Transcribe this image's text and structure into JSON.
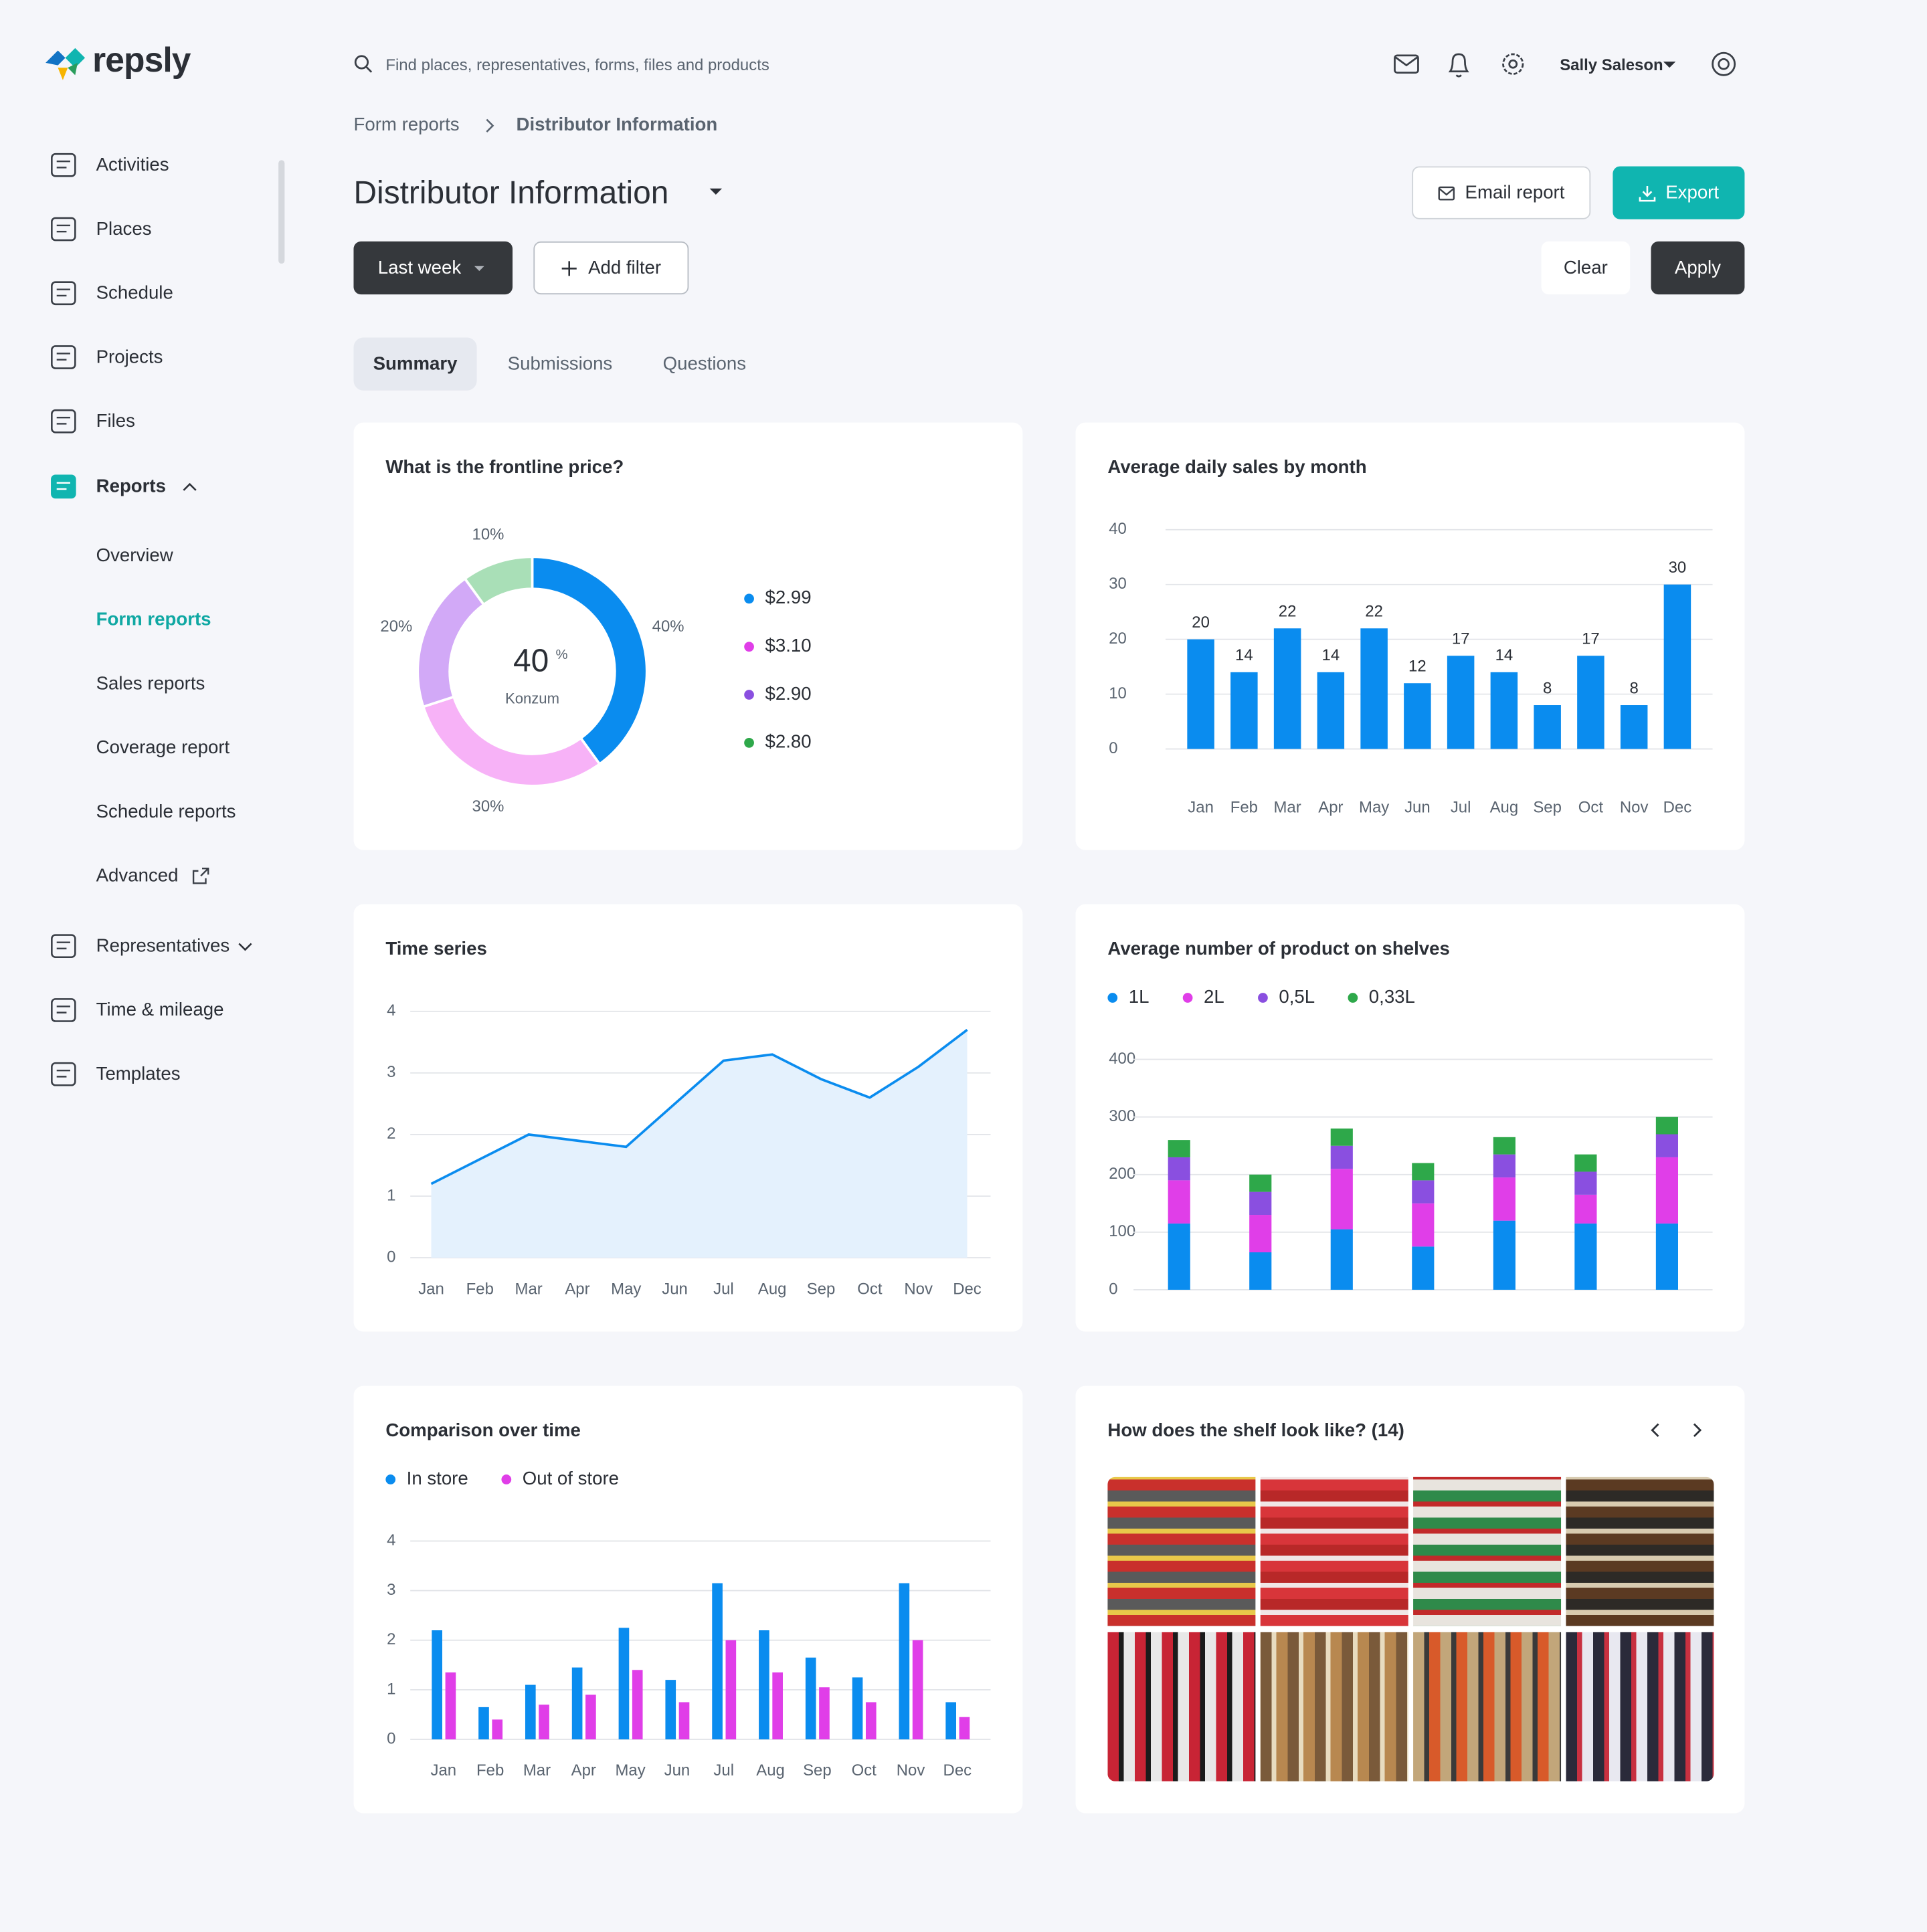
{
  "header": {
    "logo": "repsly",
    "search_placeholder": "Find places, representatives, forms, files and products",
    "user": "Sally Saleson"
  },
  "nav": [
    "Activities",
    "Places",
    "Schedule",
    "Projects",
    "Files",
    "Reports"
  ],
  "report_links": [
    "Overview",
    "Form reports",
    "Sales reports",
    "Coverage report",
    "Schedule reports",
    "Advanced"
  ],
  "active_report_link": 1,
  "nav_after": [
    "Representatives",
    "Time & mileage",
    "Templates"
  ],
  "breadcrumb": [
    "Form reports",
    "Distributor Information"
  ],
  "page_title": "Distributor Information",
  "buttons": {
    "email": "Email report",
    "export": "Export",
    "period": "Last week",
    "add_filter": "Add filter",
    "clear": "Clear",
    "apply": "Apply"
  },
  "tabs": [
    "Summary",
    "Submissions",
    "Questions"
  ],
  "active_tab": 0,
  "gallery": {
    "title": "How does the shelf look like? (14)"
  },
  "chart_data": [
    {
      "type": "pie",
      "donut": true,
      "title": "What is the frontline price?",
      "categories": [
        "$2.99",
        "$3.10",
        "$2.90",
        "$2.80"
      ],
      "values": [
        40,
        30,
        20,
        10
      ],
      "value_labels": [
        "40%",
        "30%",
        "20%",
        "10%"
      ],
      "colors": [
        "#0a8cef",
        "#f7b2f7",
        "#d2a9f7",
        "#a9dfb7"
      ],
      "legend_colors": [
        "#0a8cef",
        "#e03ee8",
        "#8a4fe0",
        "#2ea84a"
      ],
      "center_value": 40,
      "center_unit": "%",
      "center_label": "Konzum"
    },
    {
      "type": "bar",
      "title": "Average daily sales by month",
      "categories": [
        "Jan",
        "Feb",
        "Mar",
        "Apr",
        "May",
        "Jun",
        "Jul",
        "Aug",
        "Sep",
        "Oct",
        "Nov",
        "Dec"
      ],
      "values": [
        20,
        14,
        22,
        14,
        22,
        12,
        17,
        14,
        8,
        17,
        8,
        30
      ],
      "color": "#0a8cef",
      "ylim": [
        0,
        40
      ],
      "yticks": [
        0,
        10,
        20,
        30,
        40
      ],
      "grid": true
    },
    {
      "type": "area",
      "title": "Time series",
      "categories": [
        "Jan",
        "Feb",
        "Mar",
        "Apr",
        "May",
        "Jun",
        "Jul",
        "Aug",
        "Sep",
        "Oct",
        "Nov",
        "Dec"
      ],
      "values": [
        1.2,
        1.6,
        2.0,
        1.9,
        1.8,
        2.5,
        3.2,
        3.3,
        2.9,
        2.6,
        3.1,
        3.7
      ],
      "color": "#0a8cef",
      "fill": "#e4f1fd",
      "ylim": [
        0,
        4
      ],
      "yticks": [
        0,
        1,
        2,
        3,
        4
      ],
      "grid": true
    },
    {
      "type": "stacked_bar",
      "title": "Average number of product on shelves",
      "categories": [
        null,
        null,
        null,
        null,
        null,
        null,
        null
      ],
      "series": [
        {
          "name": "1L",
          "color": "#0a8cef",
          "values": [
            115,
            65,
            105,
            75,
            120,
            115,
            115
          ]
        },
        {
          "name": "2L",
          "color": "#e03ee8",
          "values": [
            75,
            65,
            105,
            75,
            75,
            50,
            115
          ]
        },
        {
          "name": "0,5L",
          "color": "#8a4fe0",
          "values": [
            40,
            40,
            40,
            40,
            40,
            40,
            40
          ]
        },
        {
          "name": "0,33L",
          "color": "#2ea84a",
          "values": [
            30,
            30,
            30,
            30,
            30,
            30,
            30
          ]
        }
      ],
      "ylim": [
        0,
        400
      ],
      "yticks": [
        0,
        100,
        200,
        300,
        400
      ],
      "grid": true
    },
    {
      "type": "grouped_bar",
      "title": "Comparison over time",
      "categories": [
        "Jan",
        "Feb",
        "Mar",
        "Apr",
        "May",
        "Jun",
        "Jul",
        "Aug",
        "Sep",
        "Oct",
        "Nov",
        "Dec"
      ],
      "series": [
        {
          "name": "In store",
          "color": "#0a8cef",
          "values": [
            2.2,
            0.65,
            1.1,
            1.45,
            2.25,
            1.2,
            3.15,
            2.2,
            1.65,
            1.25,
            3.15,
            0.75
          ]
        },
        {
          "name": "Out of store",
          "color": "#e03ee8",
          "values": [
            1.35,
            0.4,
            0.7,
            0.9,
            1.4,
            0.75,
            2.0,
            1.35,
            1.05,
            0.75,
            2.0,
            0.45
          ]
        }
      ],
      "ylim": [
        0,
        4
      ],
      "yticks": [
        0,
        1,
        2,
        3,
        4
      ],
      "grid": true
    }
  ]
}
